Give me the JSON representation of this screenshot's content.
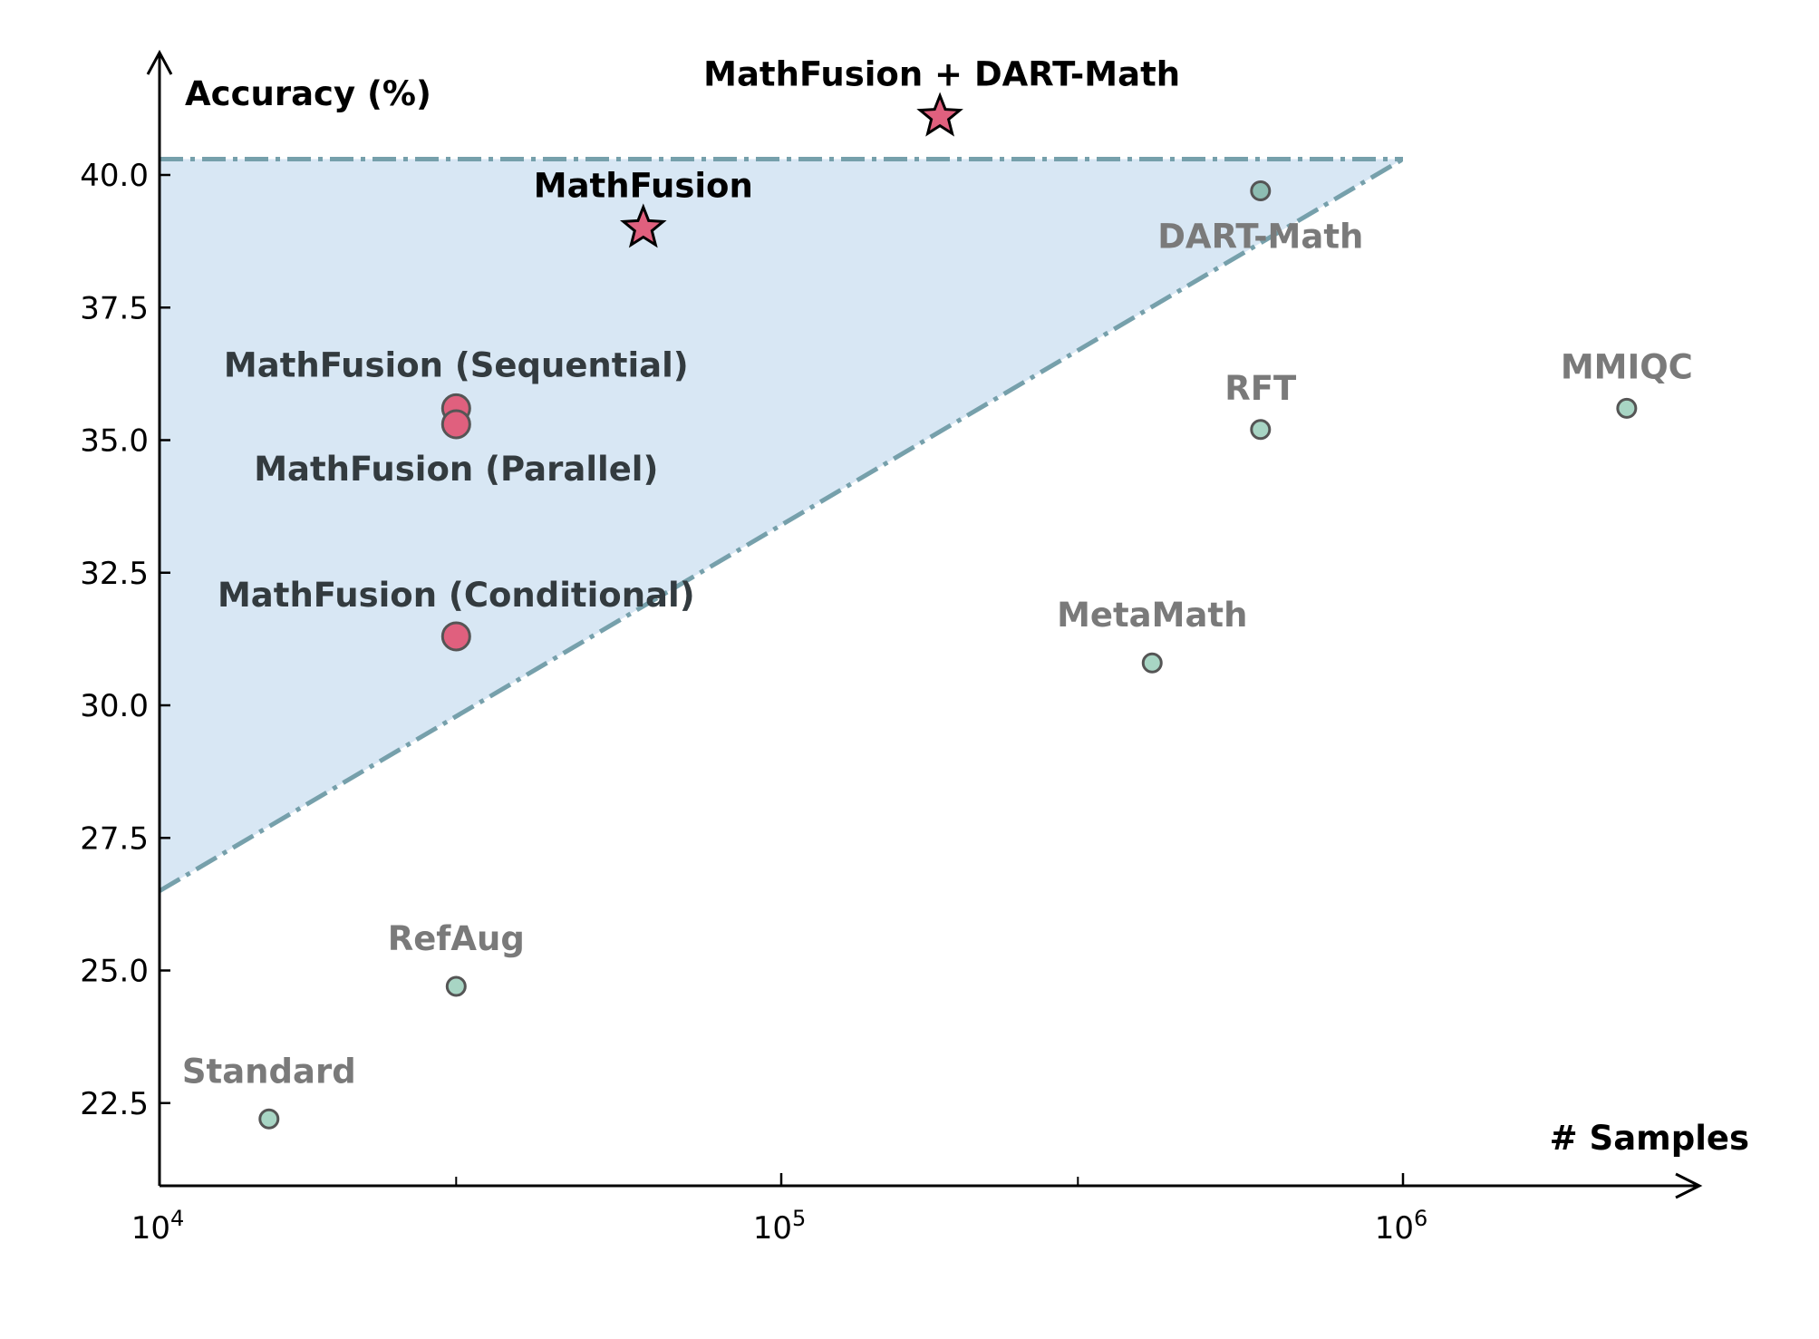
{
  "chart_data": {
    "type": "scatter",
    "x_scale": "log",
    "xlim": [
      10000,
      4000000
    ],
    "ylim": [
      21.3,
      42
    ],
    "ylabel": "Accuracy (%)",
    "xlabel": "# Samples",
    "x_ticks": [
      {
        "value": 10000,
        "base": "10",
        "exp": "4"
      },
      {
        "value": 100000,
        "base": "10",
        "exp": "5"
      },
      {
        "value": 1000000,
        "base": "10",
        "exp": "6"
      }
    ],
    "y_ticks": [
      "22.5",
      "25.0",
      "27.5",
      "30.0",
      "32.5",
      "35.0",
      "37.5",
      "40.0"
    ],
    "grid": false,
    "region": {
      "fill": "#d8e7f4",
      "line_color": "#76a0ab",
      "vertices": [
        [
          10000,
          40.3
        ],
        [
          1000000,
          40.3
        ],
        [
          1000000,
          40.3
        ],
        [
          10000,
          26.5
        ]
      ],
      "top_line": [
        [
          10000,
          40.3
        ],
        [
          1000000,
          40.3
        ]
      ],
      "slant_line": [
        [
          10000,
          26.5
        ],
        [
          1000000,
          40.3
        ]
      ]
    },
    "points": [
      {
        "label": "Standard",
        "x": 15000,
        "y": 22.2,
        "group": "baseline",
        "marker": "circle"
      },
      {
        "label": "RefAug",
        "x": 30000,
        "y": 24.7,
        "group": "baseline",
        "marker": "circle"
      },
      {
        "label": "MetaMath",
        "x": 395000,
        "y": 30.8,
        "group": "baseline",
        "marker": "circle"
      },
      {
        "label": "RFT",
        "x": 590000,
        "y": 35.2,
        "group": "baseline",
        "marker": "circle"
      },
      {
        "label": "DART-Math",
        "x": 590000,
        "y": 39.7,
        "group": "baseline",
        "marker": "circle",
        "highlight": true
      },
      {
        "label": "MMIQC",
        "x": 2290000,
        "y": 35.6,
        "group": "baseline",
        "marker": "circle"
      },
      {
        "label": "MathFusion (Sequential)",
        "x": 30000,
        "y": 35.6,
        "group": "ours",
        "marker": "circle"
      },
      {
        "label": "MathFusion (Parallel)",
        "x": 30000,
        "y": 35.3,
        "group": "ours",
        "marker": "circle"
      },
      {
        "label": "MathFusion (Conditional)",
        "x": 30000,
        "y": 31.3,
        "group": "ours",
        "marker": "circle"
      },
      {
        "label": "MathFusion",
        "x": 60000,
        "y": 39.0,
        "group": "ours",
        "marker": "star"
      },
      {
        "label": "MathFusion + DART-Math",
        "x": 180000,
        "y": 41.1,
        "group": "ours",
        "marker": "star"
      }
    ],
    "colors": {
      "baseline_fill": "#a8d5c4",
      "baseline_highlight_fill": "#8dbdb2",
      "baseline_label": "#7a7a7a",
      "ours_fill": "#e0607e",
      "ours_label": "#333b3f",
      "star_label": "#000000",
      "marker_edge": "#555555"
    }
  }
}
